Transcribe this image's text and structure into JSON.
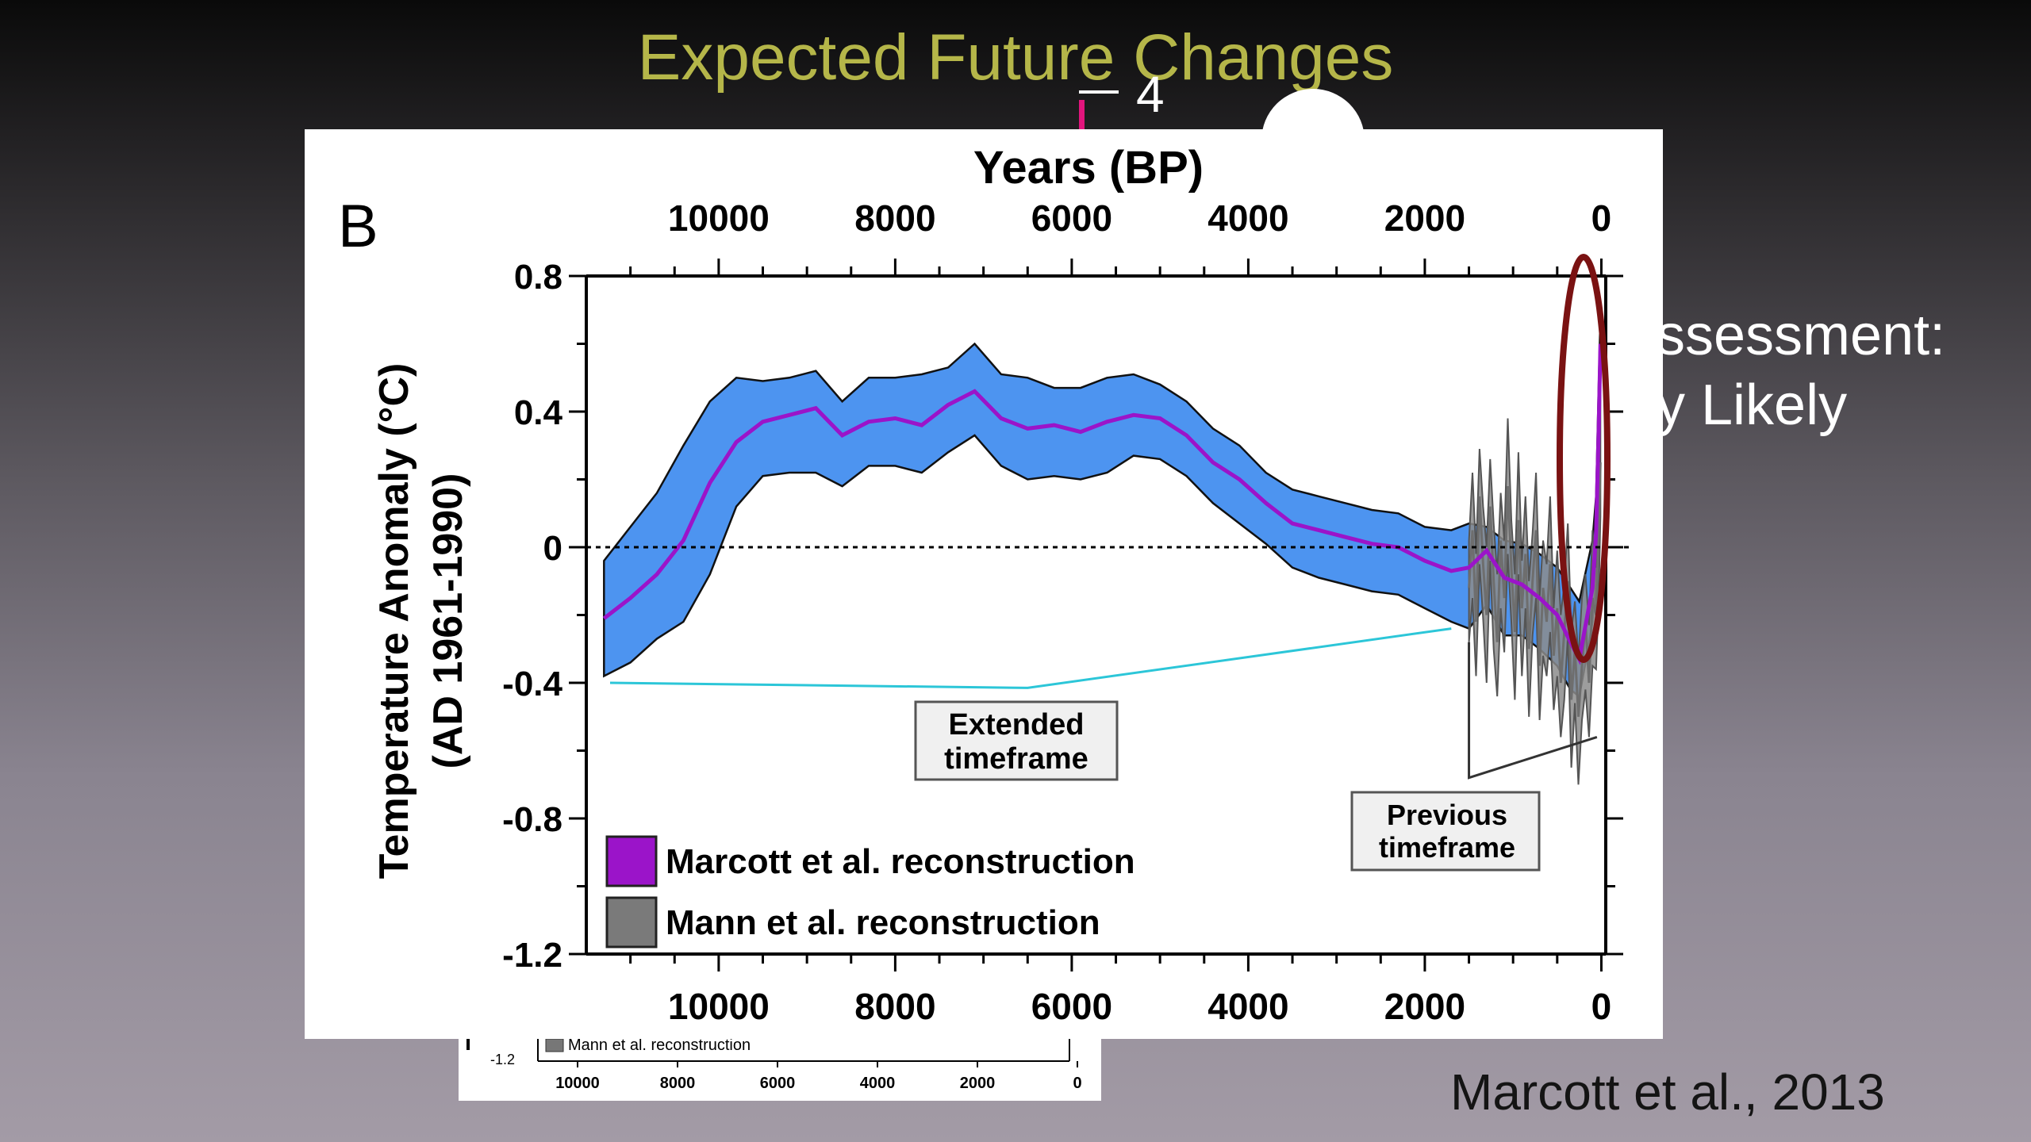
{
  "slide": {
    "title": "Expected Future Changes",
    "behind_text_1": "ssessment:",
    "behind_text_2": "y Likely",
    "stray_digit": "4",
    "citation": "Marcott et al., 2013"
  },
  "chart_data": {
    "type": "line",
    "panel_label": "B",
    "title": "Years (BP)",
    "xlabel": "Years (BP)",
    "ylabel": "Temperature Anomaly (°C)",
    "ylabel_sub": "(AD 1961-1990)",
    "x_ticks": [
      "10000",
      "8000",
      "6000",
      "4000",
      "2000",
      "0"
    ],
    "y_ticks": [
      "0.8",
      "0.4",
      "0",
      "-0.4",
      "-0.8",
      "-1.2"
    ],
    "xlim": [
      11500,
      -50
    ],
    "ylim": [
      -1.2,
      0.8
    ],
    "grid": false,
    "legend_position": "bottom-left",
    "series": [
      {
        "name": "Marcott et al. reconstruction",
        "color": "#9b14c9",
        "band_color": "#4d94f0",
        "x": [
          11300,
          11000,
          10700,
          10400,
          10100,
          9800,
          9500,
          9200,
          8900,
          8600,
          8300,
          8000,
          7700,
          7400,
          7100,
          6800,
          6500,
          6200,
          5900,
          5600,
          5300,
          5000,
          4700,
          4400,
          4100,
          3800,
          3500,
          3200,
          2900,
          2600,
          2300,
          2000,
          1700,
          1500,
          1300,
          1100,
          900,
          700,
          500,
          350,
          250,
          150,
          100,
          60,
          30,
          10
        ],
        "values": [
          -0.21,
          -0.15,
          -0.08,
          0.02,
          0.19,
          0.31,
          0.37,
          0.39,
          0.41,
          0.33,
          0.37,
          0.38,
          0.36,
          0.42,
          0.46,
          0.38,
          0.35,
          0.36,
          0.34,
          0.37,
          0.39,
          0.38,
          0.33,
          0.25,
          0.2,
          0.13,
          0.07,
          0.05,
          0.03,
          0.01,
          0.0,
          -0.04,
          -0.07,
          -0.06,
          -0.01,
          -0.09,
          -0.11,
          -0.15,
          -0.2,
          -0.28,
          -0.33,
          -0.19,
          -0.12,
          0.04,
          0.35,
          0.6
        ],
        "upper": [
          -0.04,
          0.06,
          0.16,
          0.3,
          0.43,
          0.5,
          0.49,
          0.5,
          0.52,
          0.43,
          0.5,
          0.5,
          0.51,
          0.53,
          0.6,
          0.51,
          0.5,
          0.47,
          0.47,
          0.5,
          0.51,
          0.48,
          0.43,
          0.35,
          0.3,
          0.22,
          0.17,
          0.15,
          0.13,
          0.11,
          0.1,
          0.06,
          0.05,
          0.07,
          0.06,
          0.02,
          0.01,
          -0.02,
          -0.06,
          -0.12,
          -0.16,
          -0.04,
          0.02,
          0.15,
          0.48,
          0.68
        ],
        "lower": [
          -0.38,
          -0.34,
          -0.27,
          -0.22,
          -0.08,
          0.12,
          0.21,
          0.22,
          0.22,
          0.18,
          0.24,
          0.24,
          0.22,
          0.28,
          0.33,
          0.24,
          0.2,
          0.21,
          0.2,
          0.22,
          0.27,
          0.26,
          0.21,
          0.13,
          0.07,
          0.01,
          -0.06,
          -0.09,
          -0.11,
          -0.13,
          -0.14,
          -0.18,
          -0.22,
          -0.24,
          -0.17,
          -0.26,
          -0.26,
          -0.3,
          -0.35,
          -0.42,
          -0.44,
          -0.3,
          -0.22,
          -0.1,
          0.2,
          0.5
        ]
      },
      {
        "name": "Mann et al. reconstruction",
        "color": "#6e6e6e",
        "band_color": "#8c8c8c",
        "x": [
          1500,
          1460,
          1420,
          1380,
          1340,
          1300,
          1260,
          1220,
          1180,
          1140,
          1100,
          1060,
          1020,
          980,
          940,
          900,
          860,
          820,
          780,
          740,
          700,
          660,
          620,
          580,
          540,
          500,
          460,
          420,
          380,
          340,
          300,
          260,
          220,
          180,
          140,
          100,
          60,
          30,
          10
        ],
        "values": [
          -0.12,
          0.05,
          -0.22,
          0.15,
          -0.05,
          -0.2,
          0.12,
          -0.1,
          -0.28,
          0.02,
          -0.15,
          0.18,
          -0.06,
          -0.25,
          0.08,
          -0.18,
          -0.02,
          -0.3,
          -0.1,
          0.05,
          -0.35,
          -0.12,
          -0.22,
          -0.05,
          -0.32,
          -0.18,
          -0.4,
          -0.25,
          -0.1,
          -0.45,
          -0.3,
          -0.5,
          -0.35,
          -0.22,
          -0.4,
          -0.15,
          -0.2,
          0.05,
          0.25
        ]
      }
    ],
    "annotations": [
      {
        "text_line1": "Extended",
        "text_line2": "timeframe"
      },
      {
        "text_line1": "Previous",
        "text_line2": "timeframe"
      }
    ],
    "highlight_color": "#7a1212"
  },
  "thumbnail": {
    "y_tick": "-1.2",
    "legend": "Mann et al. reconstruction",
    "x_ticks": [
      "10000",
      "8000",
      "6000",
      "4000",
      "2000",
      "0"
    ]
  }
}
